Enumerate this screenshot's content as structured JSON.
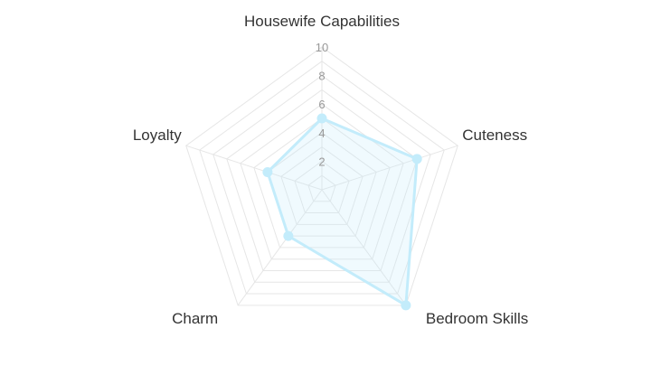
{
  "chart_data": {
    "type": "radar",
    "categories": [
      "Housewife Capabilities",
      "Cuteness",
      "Bedroom Skills",
      "Charm",
      "Loyalty"
    ],
    "series": [
      {
        "values": [
          5,
          7,
          10,
          4,
          4
        ]
      }
    ],
    "rlim": [
      0,
      10
    ],
    "ticks": [
      "2",
      "4",
      "6",
      "8",
      "10"
    ],
    "tick_values": [
      2,
      4,
      6,
      8,
      10
    ],
    "grid": true,
    "legend": "none",
    "colors": {
      "line": "#c3ecfb",
      "fill": "rgba(195,236,251,0.25)",
      "point": "#c3ecfb",
      "grid": "#e6e6e6"
    }
  }
}
